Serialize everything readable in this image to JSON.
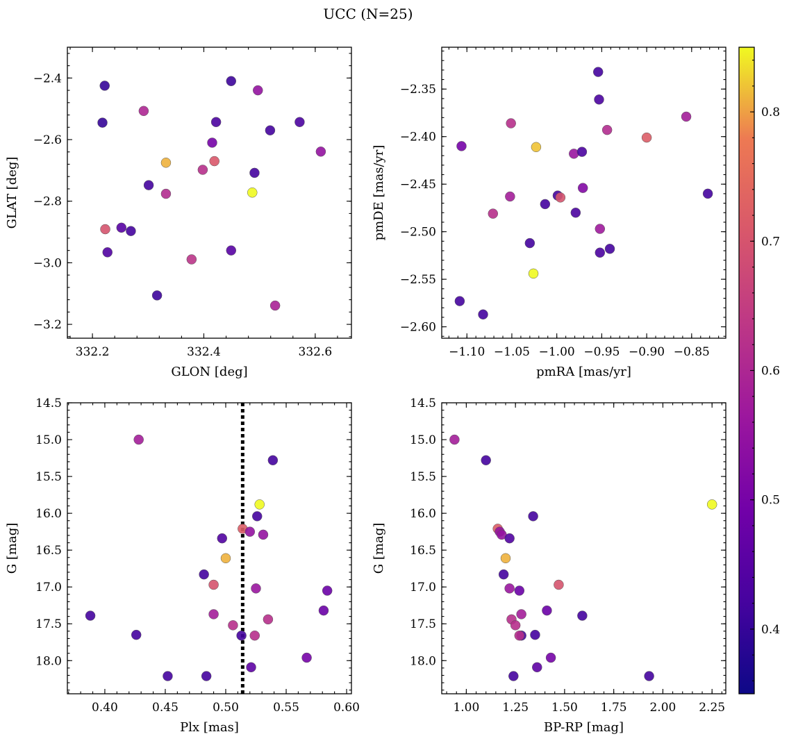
{
  "figure_title": "UCC (N=25)",
  "colorbar": {
    "range": [
      0.35,
      0.85
    ],
    "ticks": [
      0.4,
      0.5,
      0.6,
      0.7,
      0.8
    ],
    "tick_labels": [
      "0.4",
      "0.5",
      "0.6",
      "0.7",
      "0.8"
    ],
    "colormap": "plasma"
  },
  "chart_data": [
    {
      "type": "scatter",
      "title": "",
      "xlabel": "GLON [deg]",
      "ylabel": "GLAT [deg]",
      "xlim": [
        332.155,
        332.665
      ],
      "ylim": [
        -3.245,
        -2.3
      ],
      "y_inverted": false,
      "x_ticks": [
        332.2,
        332.4,
        332.6
      ],
      "x_tick_labels": [
        "332.2",
        "332.4",
        "332.6"
      ],
      "y_ticks": [
        -2.4,
        -2.6,
        -2.8,
        -3.0,
        -3.2
      ],
      "y_tick_labels": [
        "−2.4",
        "−2.6",
        "−2.8",
        "−3.0",
        "−3.2"
      ],
      "x": [
        332.222,
        332.218,
        332.449,
        332.497,
        332.292,
        332.422,
        332.519,
        332.572,
        332.415,
        332.61,
        332.332,
        332.419,
        332.398,
        332.491,
        332.301,
        332.487,
        332.332,
        332.223,
        332.252,
        332.269,
        332.227,
        332.449,
        332.378,
        332.316,
        332.528
      ],
      "y": [
        -2.425,
        -2.545,
        -2.41,
        -2.44,
        -2.507,
        -2.543,
        -2.57,
        -2.543,
        -2.61,
        -2.639,
        -2.675,
        -2.67,
        -2.698,
        -2.708,
        -2.748,
        -2.772,
        -2.776,
        -2.891,
        -2.886,
        -2.897,
        -2.966,
        -2.96,
        -2.989,
        -3.106,
        -3.139
      ],
      "color": [
        0.4,
        0.4,
        0.41,
        0.55,
        0.6,
        0.43,
        0.42,
        0.43,
        0.5,
        0.55,
        0.81,
        0.71,
        0.62,
        0.42,
        0.42,
        0.86,
        0.61,
        0.7,
        0.45,
        0.42,
        0.44,
        0.45,
        0.63,
        0.41,
        0.59
      ]
    },
    {
      "type": "scatter",
      "title": "",
      "xlabel": "pmRA [mas/yr]",
      "ylabel": "pmDE [mas/yr]",
      "xlim": [
        -1.128,
        -0.812
      ],
      "ylim": [
        -2.612,
        -2.306
      ],
      "y_inverted": false,
      "x_ticks": [
        -1.1,
        -1.05,
        -1.0,
        -0.95,
        -0.9,
        -0.85
      ],
      "x_tick_labels": [
        "−1.10",
        "−1.05",
        "−1.00",
        "−0.95",
        "−0.90",
        "−0.85"
      ],
      "y_ticks": [
        -2.35,
        -2.4,
        -2.45,
        -2.5,
        -2.55,
        -2.6
      ],
      "y_tick_labels": [
        "−2.35",
        "−2.40",
        "−2.45",
        "−2.50",
        "−2.55",
        "−2.60"
      ],
      "x": [
        -0.954,
        -0.953,
        -0.856,
        -1.051,
        -0.944,
        -0.9,
        -1.023,
        -1.106,
        -0.981,
        -0.972,
        -0.971,
        -0.832,
        -1.052,
        -0.999,
        -0.996,
        -1.071,
        -1.013,
        -0.979,
        -0.952,
        -1.03,
        -0.941,
        -0.952,
        -1.026,
        -1.108,
        -1.082
      ],
      "y": [
        -2.332,
        -2.361,
        -2.379,
        -2.386,
        -2.393,
        -2.401,
        -2.411,
        -2.41,
        -2.418,
        -2.416,
        -2.454,
        -2.46,
        -2.463,
        -2.462,
        -2.464,
        -2.481,
        -2.471,
        -2.48,
        -2.497,
        -2.512,
        -2.518,
        -2.522,
        -2.544,
        -2.573,
        -2.587
      ],
      "color": [
        0.42,
        0.43,
        0.58,
        0.62,
        0.61,
        0.72,
        0.82,
        0.5,
        0.56,
        0.43,
        0.52,
        0.42,
        0.58,
        0.42,
        0.7,
        0.62,
        0.42,
        0.43,
        0.57,
        0.42,
        0.42,
        0.43,
        0.86,
        0.42,
        0.42
      ]
    },
    {
      "type": "scatter",
      "title": "",
      "xlabel": "Plx [mas]",
      "ylabel": "G [mag]",
      "xlim": [
        0.369,
        0.604
      ],
      "ylim": [
        18.45,
        14.5
      ],
      "y_inverted": true,
      "x_ticks": [
        0.4,
        0.45,
        0.5,
        0.55,
        0.6
      ],
      "x_tick_labels": [
        "0.40",
        "0.45",
        "0.50",
        "0.55",
        "0.60"
      ],
      "y_ticks": [
        14.5,
        15.0,
        15.5,
        16.0,
        16.5,
        17.0,
        17.5,
        18.0
      ],
      "y_tick_labels": [
        "14.5",
        "15.0",
        "15.5",
        "16.0",
        "16.5",
        "17.0",
        "17.5",
        "18.0"
      ],
      "x": [
        0.428,
        0.539,
        0.528,
        0.526,
        0.514,
        0.52,
        0.531,
        0.497,
        0.5,
        0.482,
        0.49,
        0.525,
        0.584,
        0.581,
        0.388,
        0.49,
        0.535,
        0.506,
        0.426,
        0.513,
        0.524,
        0.567,
        0.521,
        0.452,
        0.484
      ],
      "y": [
        15.0,
        15.28,
        15.88,
        16.04,
        16.21,
        16.25,
        16.29,
        16.34,
        16.61,
        16.83,
        16.97,
        17.02,
        17.05,
        17.32,
        17.39,
        17.37,
        17.44,
        17.52,
        17.65,
        17.66,
        17.66,
        17.96,
        18.09,
        18.21,
        18.21
      ],
      "color": [
        0.58,
        0.42,
        0.86,
        0.42,
        0.72,
        0.55,
        0.55,
        0.44,
        0.81,
        0.42,
        0.7,
        0.56,
        0.48,
        0.48,
        0.42,
        0.58,
        0.62,
        0.62,
        0.42,
        0.42,
        0.62,
        0.5,
        0.46,
        0.42,
        0.42
      ]
    },
    {
      "type": "scatter",
      "title": "",
      "xlabel": "BP-RP [mag]",
      "ylabel": "G [mag]",
      "xlim": [
        0.875,
        2.32
      ],
      "ylim": [
        18.45,
        14.5
      ],
      "y_inverted": true,
      "x_ticks": [
        1.0,
        1.25,
        1.5,
        1.75,
        2.0,
        2.25
      ],
      "x_tick_labels": [
        "1.00",
        "1.25",
        "1.50",
        "1.75",
        "2.00",
        "2.25"
      ],
      "y_ticks": [
        14.5,
        15.0,
        15.5,
        16.0,
        16.5,
        17.0,
        17.5,
        18.0
      ],
      "y_tick_labels": [
        "14.5",
        "15.0",
        "15.5",
        "16.0",
        "16.5",
        "17.0",
        "17.5",
        "18.0"
      ],
      "x": [
        0.94,
        1.1,
        2.25,
        1.34,
        1.16,
        1.17,
        1.18,
        1.22,
        1.2,
        1.19,
        1.47,
        1.22,
        1.27,
        1.41,
        1.59,
        1.28,
        1.23,
        1.25,
        1.35,
        1.28,
        1.27,
        1.43,
        1.36,
        1.24,
        1.93
      ],
      "y": [
        15.0,
        15.28,
        15.88,
        16.04,
        16.21,
        16.25,
        16.29,
        16.34,
        16.61,
        16.83,
        16.97,
        17.02,
        17.05,
        17.32,
        17.39,
        17.37,
        17.44,
        17.52,
        17.65,
        17.66,
        17.66,
        17.96,
        18.09,
        18.21,
        18.21
      ],
      "color": [
        0.58,
        0.42,
        0.86,
        0.42,
        0.72,
        0.55,
        0.55,
        0.44,
        0.81,
        0.42,
        0.7,
        0.56,
        0.48,
        0.48,
        0.42,
        0.58,
        0.62,
        0.62,
        0.42,
        0.42,
        0.62,
        0.5,
        0.46,
        0.42,
        0.42
      ]
    }
  ],
  "plx_reference_line": {
    "x": 0.514,
    "style": "dotted",
    "color": "#000000"
  }
}
